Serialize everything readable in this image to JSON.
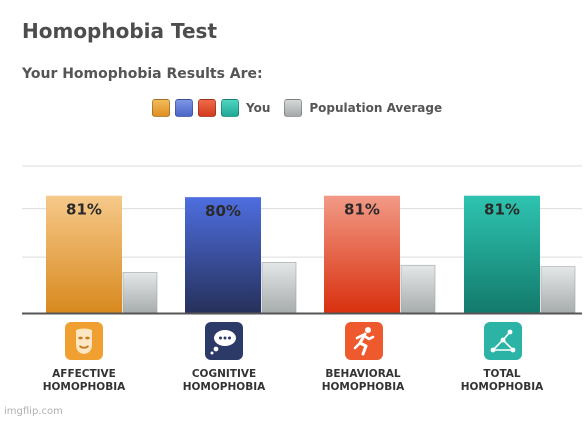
{
  "title": "Homophobia Test",
  "subtitle": "Your Homophobia Results Are:",
  "legend": {
    "you_label": "You",
    "avg_label": "Population Average",
    "you_colors": [
      "#e8a23c",
      "#5b78d4",
      "#e04a2c",
      "#2ab8a4"
    ],
    "avg_color": "#b8bcbc"
  },
  "chart_data": {
    "type": "bar",
    "categories": [
      "AFFECTIVE HOMOPHOBIA",
      "COGNITIVE HOMOPHOBIA",
      "BEHAVIORAL HOMOPHOBIA",
      "TOTAL HOMOPHOBIA"
    ],
    "series": [
      {
        "name": "You",
        "values": [
          81,
          80,
          81,
          81
        ],
        "labels": [
          "81%",
          "80%",
          "81%",
          "81%"
        ],
        "colors": [
          "#e8a23c",
          "#3a55b5",
          "#e4482a",
          "#1a9c8a"
        ]
      },
      {
        "name": "Population Average",
        "values": [
          28,
          35,
          33,
          32
        ]
      }
    ],
    "ylim": [
      0,
      100
    ],
    "grid": true
  },
  "categories_display": [
    {
      "line1": "AFFECTIVE",
      "line2": "HOMOPHOBIA",
      "icon": "mask-icon",
      "color": "#f0a030"
    },
    {
      "line1": "COGNITIVE",
      "line2": "HOMOPHOBIA",
      "icon": "thought-bubble-icon",
      "color": "#2b3a66"
    },
    {
      "line1": "BEHAVIORAL",
      "line2": "HOMOPHOBIA",
      "icon": "running-person-icon",
      "color": "#ee5a2e"
    },
    {
      "line1": "TOTAL",
      "line2": "HOMOPHOBIA",
      "icon": "network-graph-icon",
      "color": "#2bb4a6"
    }
  ],
  "watermark": "imgflip.com"
}
